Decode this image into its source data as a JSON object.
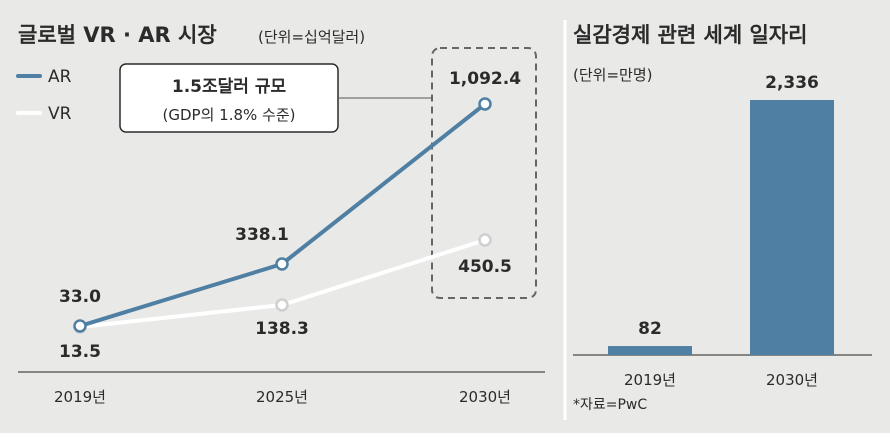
{
  "left": {
    "title": "글로벌 VR · AR 시장",
    "unit": "(단위=십억달러)",
    "callout": {
      "line1": "1.5조달러 규모",
      "line2": "(GDP의 1.8% 수준)"
    }
  },
  "right": {
    "title": "실감경제 관련 세계 일자리",
    "unit": "(단위=만명)",
    "source": "*자료=PwC"
  },
  "colors": {
    "ar": "#4f7fa3",
    "vr": "#ffffff",
    "bar": "#4f7fa3",
    "background": "#e9e9e7"
  },
  "chart_data": [
    {
      "type": "line",
      "title": "글로벌 VR · AR 시장",
      "unit": "(단위=십억달러)",
      "categories": [
        "2019년",
        "2025년",
        "2030년"
      ],
      "series": [
        {
          "name": "AR",
          "values": [
            33.0,
            338.1,
            1092.4
          ],
          "labels": [
            "33.0",
            "338.1",
            "1,092.4"
          ],
          "color": "#4f7fa3"
        },
        {
          "name": "VR",
          "values": [
            13.5,
            138.3,
            450.5
          ],
          "labels": [
            "13.5",
            "138.3",
            "450.5"
          ],
          "color": "#ffffff"
        }
      ],
      "legend": "top-left",
      "grid": false
    },
    {
      "type": "bar",
      "title": "실감경제 관련 세계 일자리",
      "unit": "(단위=만명)",
      "categories": [
        "2019년",
        "2030년"
      ],
      "values": [
        82,
        2336
      ],
      "labels": [
        "82",
        "2,336"
      ],
      "color": "#4f7fa3",
      "grid": false
    }
  ]
}
